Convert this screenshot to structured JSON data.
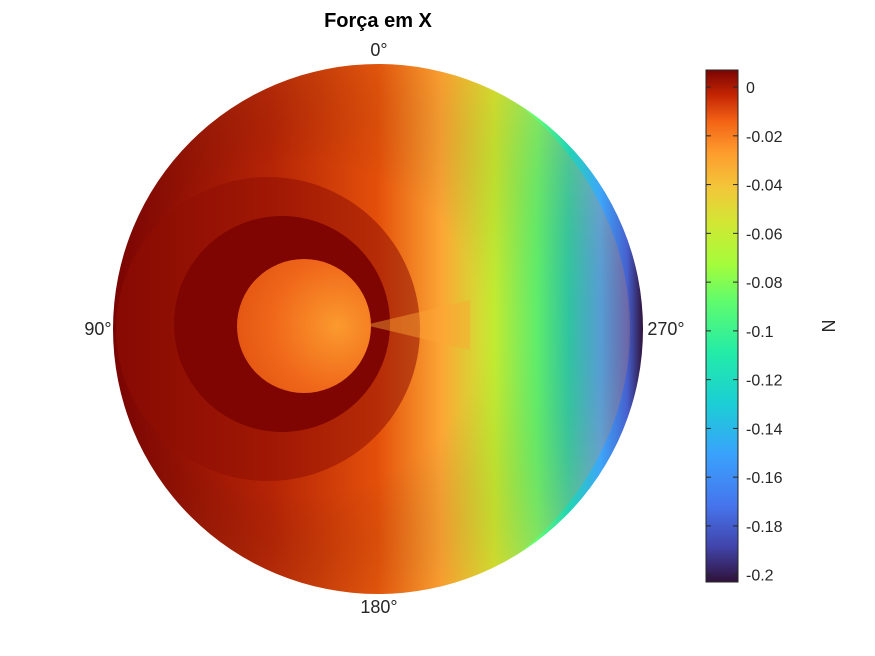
{
  "chart_data": {
    "type": "heatmap",
    "subtype": "polar-surface",
    "title": "Força em X",
    "angle_labels": [
      {
        "text": "0°",
        "angle_deg": 0
      },
      {
        "text": "90°",
        "angle_deg": 90
      },
      {
        "text": "180°",
        "angle_deg": 180
      },
      {
        "text": "270°",
        "angle_deg": 270
      }
    ],
    "colormap": "turbo",
    "colorbar": {
      "label": "N",
      "range": [
        -0.203,
        0.007
      ],
      "ticks": [
        0,
        -0.02,
        -0.04,
        -0.06,
        -0.08,
        -0.1,
        -0.12,
        -0.14,
        -0.16,
        -0.18,
        -0.2
      ],
      "tick_labels": [
        "0",
        "-0.02",
        "-0.04",
        "-0.06",
        "-0.08",
        "-0.1",
        "-0.12",
        "-0.14",
        "-0.16",
        "-0.18",
        "-0.2"
      ]
    },
    "field_regions": [
      {
        "region": "outer field, 90° side",
        "approx_value": -0.02
      },
      {
        "region": "outer field, 270° edge",
        "approx_value": -0.2
      },
      {
        "region": "inner disc",
        "approx_value": -0.045
      },
      {
        "region": "dark ring around inner disc",
        "approx_value": 0.005
      }
    ]
  }
}
